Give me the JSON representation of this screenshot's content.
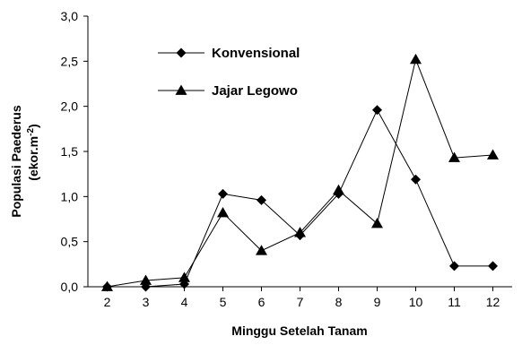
{
  "chart_data": {
    "type": "line",
    "x": [
      2,
      3,
      4,
      5,
      6,
      7,
      8,
      9,
      10,
      11,
      12
    ],
    "xlabel": "Minggu Setelah Tanam",
    "ylabel_line1": "Populasi Paederus",
    "ylabel_line2_base": "(ekor.m",
    "ylabel_line2_sup": "-2",
    "ylabel_line2_end": ")",
    "ylim": [
      0,
      3.0
    ],
    "yticks": [
      "0,0",
      "0,5",
      "1,0",
      "1,5",
      "2,0",
      "2,5",
      "3,0"
    ],
    "ytick_values": [
      0,
      0.5,
      1.0,
      1.5,
      2.0,
      2.5,
      3.0
    ],
    "grid": false,
    "legend_position": "top-left",
    "series": [
      {
        "name": "Konvensional",
        "marker": "diamond",
        "color": "#000000",
        "values": [
          0.0,
          0.0,
          0.03,
          1.03,
          0.96,
          0.57,
          1.03,
          1.96,
          1.19,
          0.23,
          0.23
        ]
      },
      {
        "name": "Jajar Legowo",
        "marker": "triangle",
        "color": "#000000",
        "values": [
          0.0,
          0.07,
          0.1,
          0.82,
          0.4,
          0.6,
          1.07,
          0.7,
          2.52,
          1.43,
          1.46
        ]
      }
    ]
  }
}
